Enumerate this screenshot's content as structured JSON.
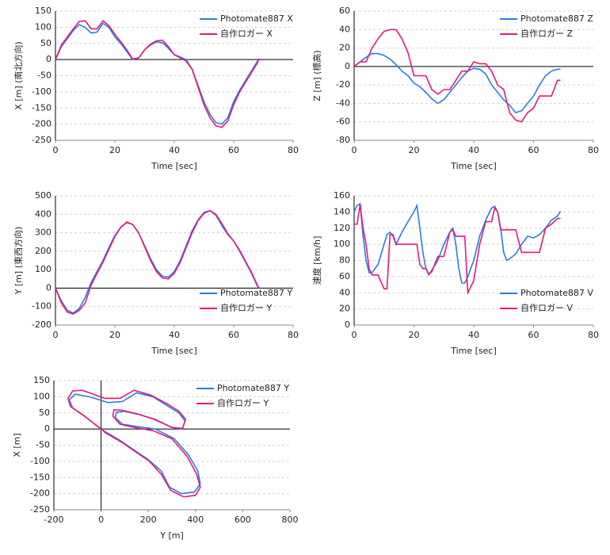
{
  "chart_data": [
    {
      "type": "line",
      "xlabel": "Time [sec]",
      "ylabel": "X [m] (南北方向)",
      "legend": "upper right",
      "grid": true,
      "x": [
        0,
        2,
        4,
        6,
        8,
        10,
        12,
        14,
        16,
        18,
        20,
        22,
        24,
        26,
        28,
        30,
        32,
        34,
        36,
        38,
        40,
        42,
        44,
        46,
        48,
        50,
        52,
        54,
        56,
        58,
        60,
        62,
        64,
        66,
        68,
        68.5
      ],
      "xlim": [
        0,
        80
      ],
      "xticks": [
        0,
        20,
        40,
        60,
        80
      ],
      "ylim": [
        -250,
        150
      ],
      "yticks": [
        -250,
        -200,
        -150,
        -100,
        -50,
        0,
        50,
        100,
        150
      ],
      "series": [
        {
          "name": "Photomate887 X",
          "color": "#2a7be4",
          "values": [
            0,
            40,
            65,
            90,
            108,
            100,
            82,
            85,
            112,
            100,
            70,
            50,
            25,
            0,
            5,
            30,
            45,
            55,
            52,
            35,
            15,
            8,
            0,
            -30,
            -80,
            -130,
            -170,
            -195,
            -200,
            -180,
            -130,
            -95,
            -65,
            -35,
            -5,
            2
          ]
        },
        {
          "name": "自作ロガー X",
          "color": "#e5197d",
          "values": [
            0,
            45,
            70,
            95,
            118,
            120,
            95,
            95,
            120,
            105,
            78,
            55,
            30,
            2,
            5,
            30,
            48,
            58,
            60,
            40,
            15,
            5,
            -5,
            -30,
            -85,
            -140,
            -180,
            -205,
            -210,
            -190,
            -140,
            -100,
            -70,
            -40,
            -10,
            3
          ]
        }
      ]
    },
    {
      "type": "line",
      "xlabel": "Time [sec]",
      "ylabel": "Z [m] (標高)",
      "legend": "upper right",
      "grid": true,
      "x": [
        0,
        2,
        4,
        6,
        8,
        10,
        12,
        14,
        16,
        18,
        20,
        22,
        24,
        26,
        28,
        30,
        32,
        34,
        36,
        38,
        40,
        42,
        44,
        46,
        48,
        50,
        52,
        54,
        56,
        58,
        60,
        62,
        64,
        66,
        68,
        69
      ],
      "xlim": [
        0,
        80
      ],
      "xticks": [
        0,
        20,
        40,
        60,
        80
      ],
      "ylim": [
        -80,
        60
      ],
      "yticks": [
        -80,
        -60,
        -40,
        -20,
        0,
        20,
        40,
        60
      ],
      "series": [
        {
          "name": "Photomate887 Z",
          "color": "#2a7be4",
          "values": [
            0,
            5,
            10,
            14,
            14,
            12,
            8,
            2,
            -5,
            -10,
            -18,
            -22,
            -28,
            -35,
            -40,
            -36,
            -28,
            -20,
            -12,
            -5,
            -2,
            -3,
            -8,
            -20,
            -28,
            -36,
            -42,
            -50,
            -48,
            -40,
            -32,
            -20,
            -10,
            -5,
            -3,
            -3
          ]
        },
        {
          "name": "自作ロガー Z",
          "color": "#e5197d",
          "values": [
            0,
            5,
            5,
            20,
            30,
            38,
            40,
            40,
            30,
            15,
            -10,
            -10,
            -10,
            -25,
            -30,
            -25,
            -25,
            -15,
            -5,
            -5,
            5,
            3,
            3,
            -5,
            -20,
            -25,
            -50,
            -58,
            -60,
            -50,
            -45,
            -32,
            -32,
            -32,
            -15,
            -15
          ]
        }
      ]
    },
    {
      "type": "line",
      "xlabel": "Time [sec]",
      "ylabel": "Y [m] (東西方向)",
      "legend": "lower right",
      "grid": true,
      "x": [
        0,
        2,
        4,
        6,
        8,
        10,
        12,
        14,
        16,
        18,
        20,
        22,
        24,
        26,
        28,
        30,
        32,
        34,
        36,
        38,
        40,
        42,
        44,
        46,
        48,
        50,
        52,
        54,
        56,
        58,
        60,
        62,
        64,
        66,
        68,
        68.5
      ],
      "xlim": [
        0,
        80
      ],
      "xticks": [
        0,
        20,
        40,
        60,
        80
      ],
      "ylim": [
        -200,
        500
      ],
      "yticks": [
        -200,
        -100,
        0,
        100,
        200,
        300,
        400,
        500
      ],
      "series": [
        {
          "name": "Photomate887 Y",
          "color": "#2a7be4",
          "values": [
            0,
            -70,
            -120,
            -135,
            -110,
            -50,
            30,
            90,
            150,
            220,
            285,
            330,
            355,
            345,
            300,
            230,
            160,
            100,
            65,
            60,
            90,
            150,
            230,
            310,
            370,
            410,
            420,
            395,
            340,
            290,
            255,
            200,
            140,
            80,
            10,
            0
          ]
        },
        {
          "name": "自作ロガー Y",
          "color": "#e5197d",
          "values": [
            0,
            -80,
            -130,
            -140,
            -120,
            -80,
            15,
            80,
            140,
            210,
            280,
            330,
            358,
            345,
            300,
            225,
            150,
            90,
            55,
            50,
            80,
            140,
            220,
            300,
            365,
            405,
            420,
            400,
            350,
            295,
            255,
            205,
            145,
            85,
            15,
            0
          ]
        }
      ]
    },
    {
      "type": "line",
      "xlabel": "Time [sec]",
      "ylabel": "速度 [km/h]",
      "legend": "lower right",
      "grid": true,
      "x": [
        0,
        1,
        2,
        3,
        4,
        5,
        6,
        8,
        10,
        11,
        12,
        13,
        14,
        16,
        18,
        20,
        21,
        22,
        23,
        24,
        25,
        26,
        28,
        30,
        32,
        33,
        34,
        35,
        36,
        37,
        38,
        40,
        42,
        44,
        46,
        47,
        48,
        49,
        50,
        51,
        52,
        54,
        56,
        58,
        60,
        62,
        64,
        66,
        68,
        69
      ],
      "xlim": [
        0,
        80
      ],
      "xticks": [
        0,
        20,
        40,
        60,
        80
      ],
      "ylim": [
        0,
        160
      ],
      "yticks": [
        0,
        20,
        40,
        60,
        80,
        100,
        120,
        140,
        160
      ],
      "series": [
        {
          "name": "Photomate887 V",
          "color": "#2a7be4",
          "values": [
            140,
            148,
            150,
            110,
            80,
            65,
            65,
            75,
            100,
            112,
            115,
            110,
            100,
            115,
            128,
            140,
            148,
            120,
            90,
            70,
            62,
            68,
            80,
            100,
            115,
            120,
            100,
            70,
            52,
            52,
            60,
            80,
            110,
            130,
            145,
            147,
            140,
            120,
            90,
            80,
            82,
            88,
            100,
            110,
            108,
            112,
            120,
            130,
            135,
            141
          ]
        },
        {
          "name": "自作ロガー V",
          "color": "#e5197d",
          "values": [
            125,
            125,
            150,
            120,
            100,
            70,
            62,
            62,
            45,
            45,
            112,
            112,
            100,
            100,
            100,
            100,
            100,
            75,
            70,
            70,
            63,
            66,
            85,
            85,
            115,
            118,
            110,
            110,
            110,
            110,
            40,
            55,
            100,
            128,
            128,
            145,
            140,
            118,
            118,
            118,
            118,
            118,
            90,
            90,
            90,
            90,
            120,
            125,
            132,
            132
          ]
        }
      ]
    },
    {
      "type": "line",
      "xlabel": "Y [m]",
      "ylabel": "X [m]",
      "legend": "upper right",
      "grid": true,
      "xlim": [
        -200,
        800
      ],
      "xticks": [
        -200,
        0,
        200,
        400,
        600,
        800
      ],
      "ylim": [
        -250,
        150
      ],
      "yticks": [
        -250,
        -200,
        -150,
        -100,
        -50,
        0,
        50,
        100,
        150
      ],
      "series": [
        {
          "name": "Photomate887 Y",
          "color": "#2a7be4",
          "x": [
            0,
            -70,
            -120,
            -135,
            -110,
            -50,
            30,
            90,
            150,
            220,
            285,
            330,
            355,
            345,
            300,
            230,
            160,
            100,
            65,
            60,
            90,
            150,
            230,
            310,
            370,
            410,
            420,
            395,
            340,
            290,
            255,
            200,
            140,
            80,
            10,
            0
          ],
          "values": [
            0,
            40,
            65,
            90,
            108,
            100,
            82,
            85,
            112,
            100,
            70,
            50,
            25,
            0,
            5,
            30,
            45,
            55,
            52,
            35,
            15,
            8,
            0,
            -30,
            -80,
            -130,
            -170,
            -195,
            -200,
            -180,
            -130,
            -95,
            -65,
            -35,
            -5,
            2
          ]
        },
        {
          "name": "自作ロガー Y",
          "color": "#e5197d",
          "x": [
            0,
            -80,
            -130,
            -140,
            -120,
            -80,
            15,
            80,
            140,
            210,
            280,
            330,
            358,
            345,
            300,
            225,
            150,
            90,
            55,
            50,
            80,
            140,
            220,
            300,
            365,
            405,
            420,
            400,
            350,
            295,
            255,
            205,
            145,
            85,
            15,
            0
          ],
          "values": [
            0,
            45,
            70,
            95,
            118,
            120,
            95,
            95,
            120,
            105,
            78,
            55,
            30,
            2,
            5,
            30,
            48,
            58,
            60,
            40,
            15,
            5,
            -5,
            -30,
            -85,
            -140,
            -180,
            -205,
            -210,
            -190,
            -140,
            -100,
            -70,
            -40,
            -10,
            3
          ]
        }
      ]
    }
  ]
}
